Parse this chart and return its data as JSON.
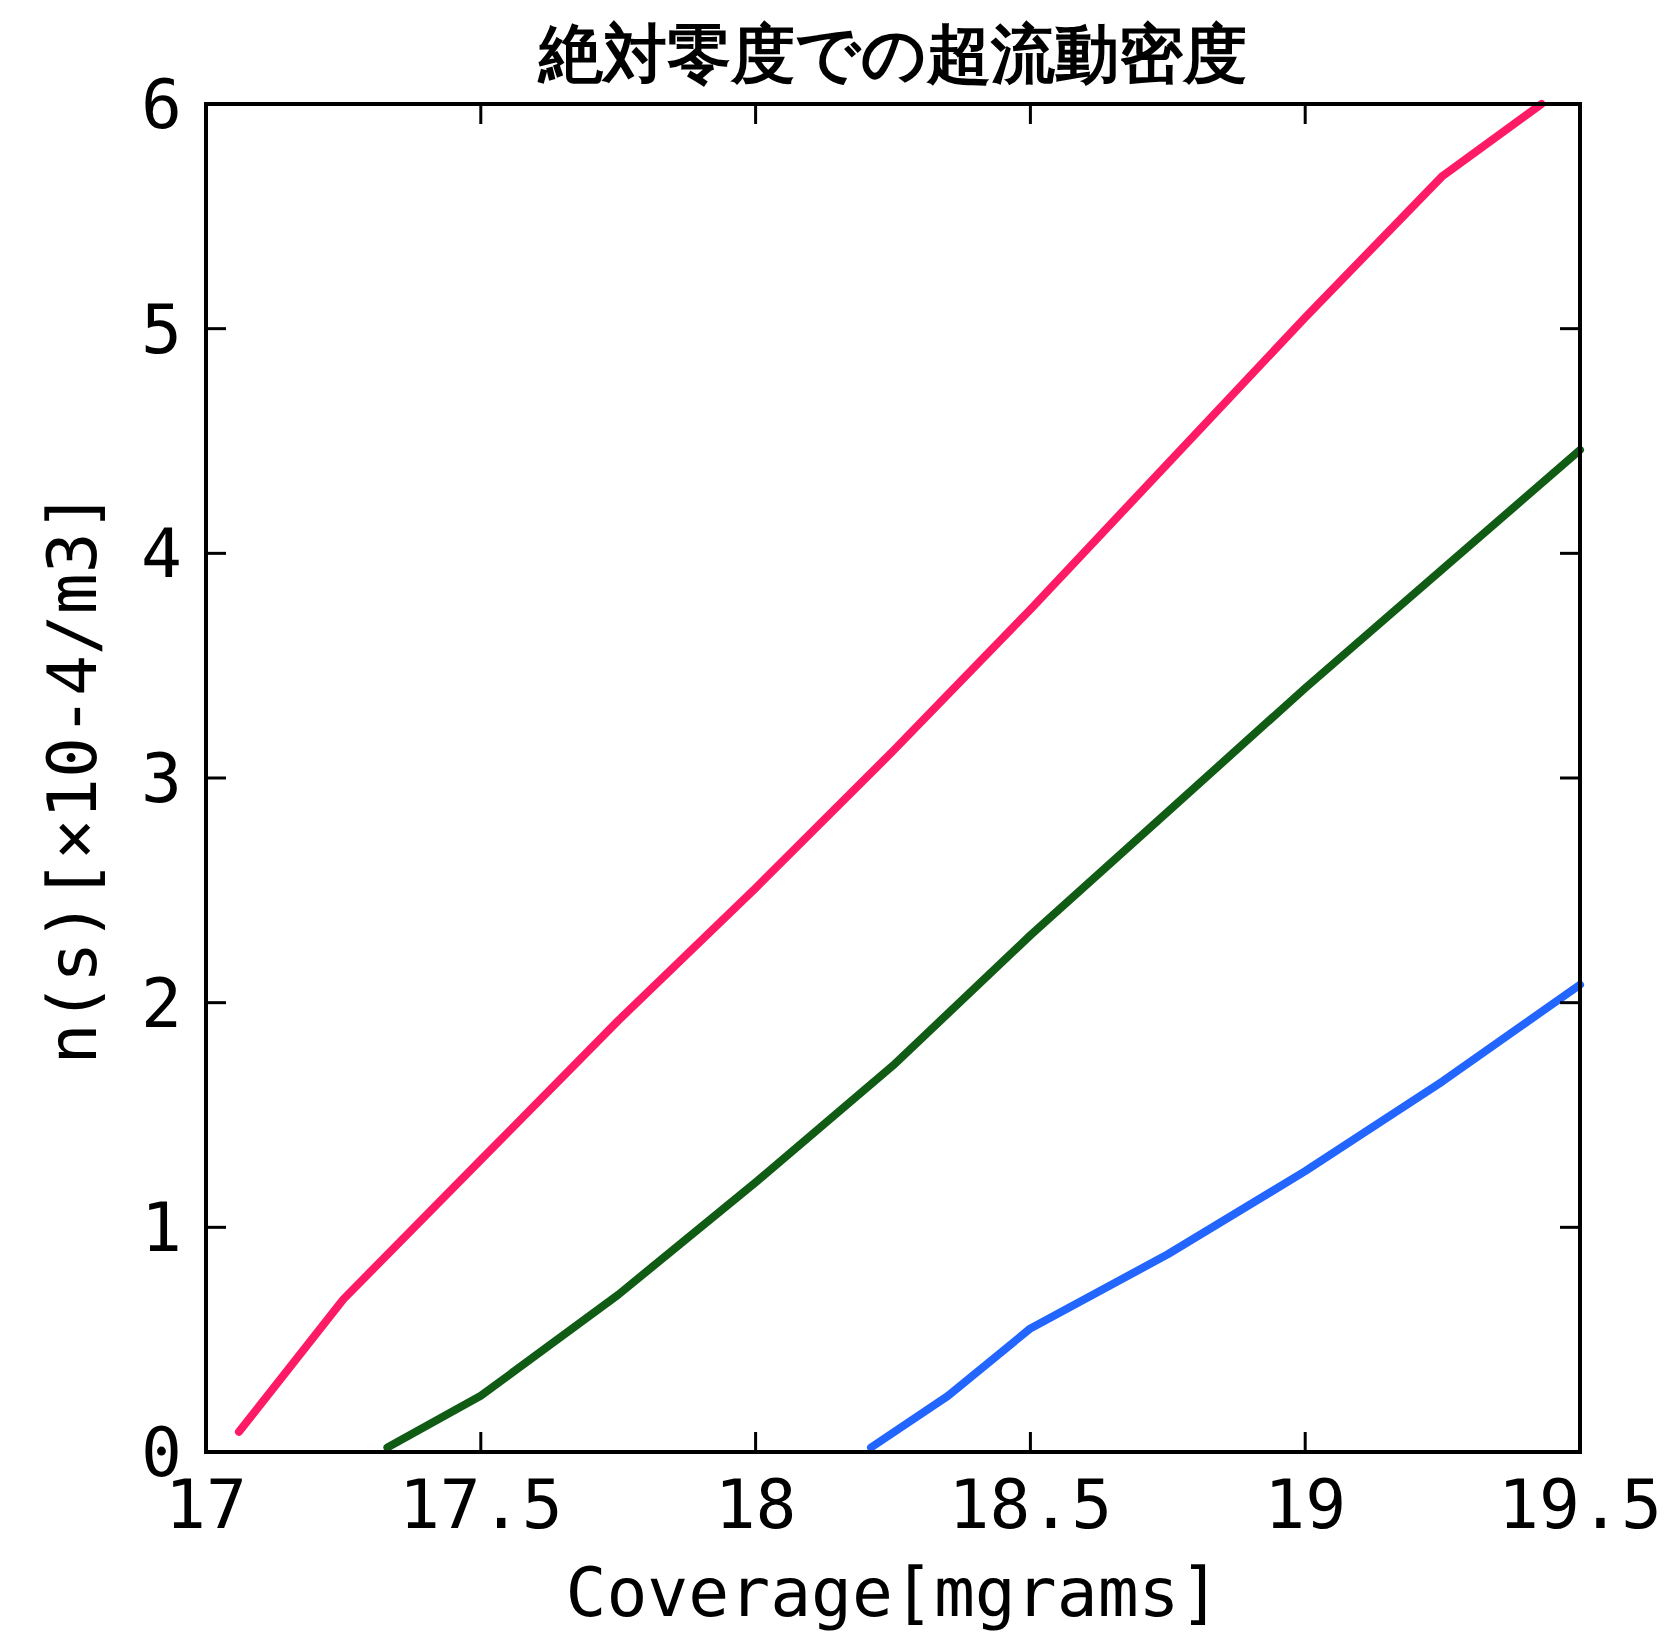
{
  "chart_data": {
    "type": "line",
    "title": "絶対零度での超流動密度",
    "xlabel": "Coverage[mgrams]",
    "ylabel": "n(s)[×10-4/m3]",
    "xlim": [
      17,
      19.5
    ],
    "ylim": [
      0,
      6
    ],
    "xticks": [
      17,
      17.5,
      18,
      18.5,
      19,
      19.5
    ],
    "yticks": [
      0,
      1,
      2,
      3,
      4,
      5,
      6
    ],
    "grid": false,
    "marker": "none",
    "line_style": "solid",
    "series": [
      {
        "color": "#ff1a66",
        "x": [
          17.06,
          17.25,
          17.5,
          17.75,
          18,
          18.25,
          18.5,
          18.75,
          19,
          19.25,
          19.43
        ],
        "values": [
          0.09,
          0.68,
          1.3,
          1.92,
          2.51,
          3.12,
          3.75,
          4.4,
          5.05,
          5.68,
          6.0
        ]
      },
      {
        "color": "#115c15",
        "x": [
          17.33,
          17.5,
          17.75,
          18,
          18.25,
          18.5,
          18.75,
          19,
          19.25,
          19.5
        ],
        "values": [
          0.02,
          0.25,
          0.7,
          1.2,
          1.72,
          2.3,
          2.85,
          3.4,
          3.93,
          4.46
        ]
      },
      {
        "color": "#2266ff",
        "x": [
          18.21,
          18.35,
          18.5,
          18.75,
          19,
          19.25,
          19.5
        ],
        "values": [
          0.02,
          0.25,
          0.55,
          0.88,
          1.25,
          1.65,
          2.08
        ]
      }
    ]
  }
}
